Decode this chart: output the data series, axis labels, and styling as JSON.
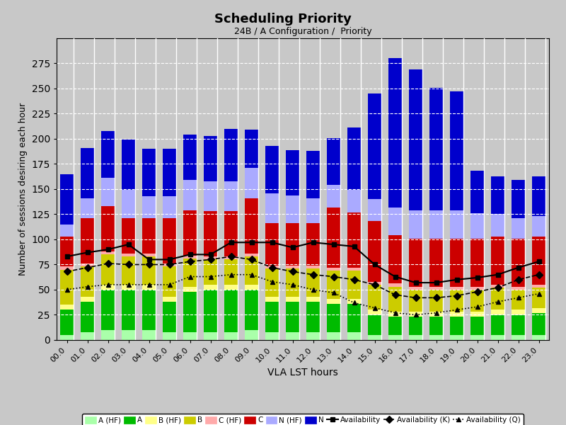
{
  "title": "Scheduling Priority",
  "subtitle": "24B / A Configuration /  Priority",
  "xlabel": "VLA LST hours",
  "ylabel": "Number of sessions desiring each hour",
  "hours": [
    "00.0",
    "01.0",
    "02.0",
    "03.0",
    "04.0",
    "05.0",
    "06.0",
    "07.0",
    "08.0",
    "09.0",
    "10.0",
    "11.0",
    "12.0",
    "13.0",
    "14.0",
    "15.0",
    "16.0",
    "17.0",
    "18.0",
    "19.0",
    "20.0",
    "21.0",
    "22.0",
    "23.0"
  ],
  "A_HF": [
    5,
    8,
    10,
    10,
    10,
    8,
    8,
    8,
    8,
    10,
    8,
    8,
    8,
    8,
    8,
    5,
    5,
    5,
    5,
    5,
    5,
    5,
    5,
    5
  ],
  "A": [
    25,
    30,
    40,
    40,
    40,
    30,
    40,
    42,
    42,
    40,
    30,
    30,
    30,
    28,
    28,
    20,
    18,
    18,
    18,
    18,
    18,
    20,
    20,
    22
  ],
  "B_HF": [
    5,
    5,
    5,
    5,
    5,
    5,
    5,
    5,
    5,
    5,
    5,
    5,
    5,
    5,
    5,
    5,
    5,
    5,
    5,
    5,
    5,
    5,
    5,
    5
  ],
  "B": [
    35,
    30,
    30,
    28,
    28,
    30,
    28,
    25,
    25,
    28,
    28,
    28,
    28,
    28,
    28,
    25,
    25,
    22,
    22,
    22,
    22,
    22,
    20,
    20
  ],
  "C_HF": [
    3,
    3,
    3,
    3,
    3,
    3,
    3,
    3,
    3,
    3,
    3,
    3,
    3,
    3,
    3,
    3,
    3,
    3,
    3,
    3,
    3,
    3,
    3,
    3
  ],
  "C": [
    30,
    45,
    45,
    35,
    35,
    45,
    45,
    45,
    45,
    55,
    42,
    42,
    42,
    60,
    55,
    60,
    48,
    48,
    48,
    48,
    48,
    48,
    48,
    48
  ],
  "N_HF": [
    12,
    20,
    28,
    28,
    22,
    22,
    30,
    30,
    30,
    30,
    30,
    28,
    25,
    22,
    22,
    22,
    28,
    28,
    28,
    28,
    25,
    22,
    20,
    20
  ],
  "N": [
    50,
    50,
    47,
    50,
    47,
    47,
    45,
    45,
    52,
    38,
    47,
    45,
    47,
    47,
    62,
    105,
    148,
    140,
    122,
    118,
    42,
    38,
    38,
    40
  ],
  "avail": [
    83,
    87,
    90,
    95,
    80,
    80,
    85,
    85,
    97,
    97,
    97,
    92,
    97,
    95,
    93,
    75,
    63,
    57,
    57,
    60,
    62,
    65,
    72,
    78
  ],
  "avail_K": [
    68,
    72,
    76,
    75,
    75,
    75,
    78,
    80,
    83,
    80,
    72,
    68,
    65,
    63,
    60,
    55,
    45,
    42,
    42,
    44,
    48,
    52,
    60,
    65
  ],
  "avail_Q": [
    50,
    53,
    55,
    55,
    55,
    55,
    63,
    63,
    65,
    65,
    58,
    55,
    50,
    47,
    37,
    32,
    27,
    25,
    27,
    30,
    33,
    38,
    42,
    46
  ],
  "colors": {
    "A_HF": "#aaffaa",
    "A": "#00bb00",
    "B_HF": "#ffff88",
    "B": "#cccc00",
    "C_HF": "#ffaaaa",
    "C": "#cc0000",
    "N_HF": "#aaaaff",
    "N": "#0000cc"
  },
  "ylim": [
    0,
    300
  ],
  "yticks": [
    0,
    25,
    50,
    75,
    100,
    125,
    150,
    175,
    200,
    225,
    250,
    275
  ],
  "background_color": "#c8c8c8",
  "plot_background": "#c8c8c8"
}
